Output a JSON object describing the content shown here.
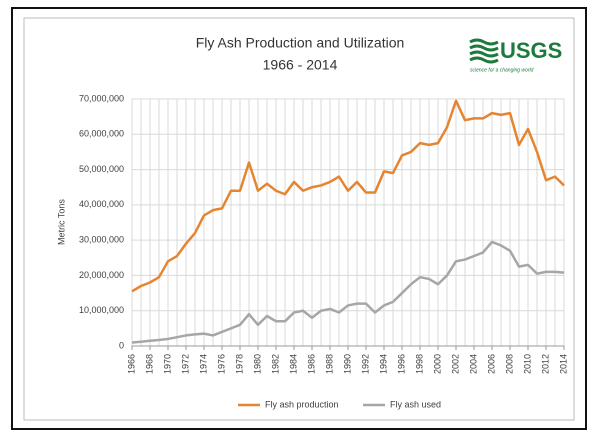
{
  "chart_data": {
    "type": "line",
    "title": "Fly Ash Production and Utilization",
    "subtitle": "1966 - 2014",
    "logo": "USGS",
    "logo_tagline": "science for a changing world",
    "y_label": "Metric Tons",
    "x": [
      1966,
      1967,
      1968,
      1969,
      1970,
      1971,
      1972,
      1973,
      1974,
      1975,
      1976,
      1977,
      1978,
      1979,
      1980,
      1981,
      1982,
      1983,
      1984,
      1985,
      1986,
      1987,
      1988,
      1989,
      1990,
      1991,
      1992,
      1993,
      1994,
      1995,
      1996,
      1997,
      1998,
      1999,
      2000,
      2001,
      2002,
      2003,
      2004,
      2005,
      2006,
      2007,
      2008,
      2009,
      2010,
      2011,
      2012,
      2013,
      2014
    ],
    "series": [
      {
        "name": "Fly ash production",
        "color": "#e5852f",
        "values": [
          15500000,
          17000000,
          18000000,
          19500000,
          24000000,
          25500000,
          29000000,
          32000000,
          37000000,
          38500000,
          39000000,
          44000000,
          44000000,
          52000000,
          44000000,
          46000000,
          44000000,
          43000000,
          46500000,
          44000000,
          45000000,
          45500000,
          46500000,
          48000000,
          44000000,
          46500000,
          43500000,
          43500000,
          49500000,
          49000000,
          54000000,
          55000000,
          57500000,
          57000000,
          57500000,
          62000000,
          69500000,
          64000000,
          64500000,
          64500000,
          66000000,
          65500000,
          66000000,
          57000000,
          61500000,
          55000000,
          47000000,
          48000000,
          45500000
        ]
      },
      {
        "name": "Fly ash used",
        "color": "#a6a6a6",
        "values": [
          1000000,
          1200000,
          1500000,
          1700000,
          2000000,
          2500000,
          3000000,
          3300000,
          3500000,
          3000000,
          4000000,
          5000000,
          6000000,
          9000000,
          6000000,
          8500000,
          7000000,
          7000000,
          9500000,
          10000000,
          8000000,
          10000000,
          10500000,
          9500000,
          11500000,
          12000000,
          12000000,
          9500000,
          11500000,
          12500000,
          15000000,
          17500000,
          19500000,
          19000000,
          17500000,
          20000000,
          24000000,
          24500000,
          25500000,
          26500000,
          29500000,
          28500000,
          27000000,
          22500000,
          23000000,
          20500000,
          21000000,
          21000000,
          20800000
        ]
      }
    ],
    "xlim": [
      1966,
      2014
    ],
    "xticks": [
      1966,
      1968,
      1970,
      1972,
      1974,
      1976,
      1978,
      1980,
      1982,
      1984,
      1986,
      1988,
      1990,
      1992,
      1994,
      1996,
      1998,
      2000,
      2002,
      2004,
      2006,
      2008,
      2010,
      2012,
      2014
    ],
    "ylim": [
      0,
      70000000
    ],
    "yticks": [
      0,
      {
        "value": 10000000,
        "label": "10,000,000"
      },
      {
        "value": 20000000,
        "label": "20,000,000"
      },
      {
        "value": 30000000,
        "label": "30,000,000"
      },
      {
        "value": 40000000,
        "label": "40,000,000"
      },
      {
        "value": 50000000,
        "label": "50,000,000"
      },
      {
        "value": 60000000,
        "label": "60,000,000"
      },
      {
        "value": 70000000,
        "label": "70,000,000"
      }
    ],
    "grid": true,
    "legend": "bottom"
  }
}
